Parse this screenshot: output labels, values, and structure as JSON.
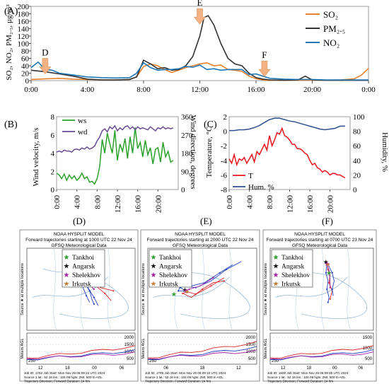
{
  "panels": {
    "A": {
      "tag": "(A)"
    },
    "B": {
      "tag": "(B)"
    },
    "C": {
      "tag": "(C)"
    },
    "D": {
      "tag": "(D)"
    },
    "E": {
      "tag": "(E)"
    },
    "F": {
      "tag": "(F)"
    }
  },
  "chart_data": [
    {
      "id": "A",
      "type": "line",
      "ylabel": "SO₂, NO₂, PM₂.₅, µg/m³",
      "ylim": [
        0,
        200
      ],
      "yticks": [
        0,
        20,
        40,
        60,
        80,
        100,
        120,
        140,
        160,
        180,
        200
      ],
      "xlim": [
        0,
        24
      ],
      "xticks": [
        "0:00",
        "4:00",
        "8:00",
        "12:00",
        "16:00",
        "20:00",
        "0:00"
      ],
      "legend_placement": "top-right",
      "colors": {
        "SO2": "#e8822c",
        "PM25": "#333333",
        "NO2": "#1f77b4",
        "arrow": "#f4b183"
      },
      "annotations": [
        {
          "label": "D",
          "x": 1.0,
          "y": 18
        },
        {
          "label": "E",
          "x": 12.0,
          "y": 152
        },
        {
          "label": "F",
          "x": 16.6,
          "y": 11
        }
      ],
      "series": [
        {
          "name": "SO₂",
          "key": "SO2",
          "x": [
            0,
            1,
            2,
            3,
            4,
            5,
            6,
            7,
            7.5,
            8,
            8.5,
            9,
            9.5,
            10,
            10.5,
            11,
            11.5,
            12,
            12.5,
            13,
            13.5,
            14,
            14.5,
            15,
            15.5,
            16,
            16.5,
            17,
            18,
            19,
            20,
            21,
            22,
            23,
            23.5,
            24
          ],
          "y": [
            3,
            5,
            6,
            4,
            3,
            2,
            2,
            3,
            10,
            38,
            45,
            40,
            30,
            22,
            28,
            35,
            40,
            45,
            48,
            40,
            42,
            30,
            28,
            25,
            12,
            5,
            2,
            1,
            1,
            1,
            1,
            1,
            2,
            5,
            15,
            33
          ]
        },
        {
          "name": "PM₂.₅",
          "key": "PM25",
          "x": [
            0,
            1,
            2,
            3,
            4,
            5,
            6,
            7,
            7.5,
            8,
            8.5,
            9,
            9.5,
            10,
            10.5,
            11,
            11.5,
            12,
            12.3,
            12.6,
            13,
            13.5,
            14,
            14.5,
            15,
            15.5,
            16,
            16.5,
            17,
            18,
            19,
            19.5,
            20,
            21,
            22,
            23,
            24
          ],
          "y": [
            28,
            24,
            18,
            12,
            4,
            2,
            2,
            3,
            10,
            55,
            45,
            32,
            35,
            28,
            30,
            40,
            65,
            120,
            170,
            175,
            150,
            100,
            60,
            45,
            40,
            20,
            8,
            4,
            2,
            1,
            2,
            12,
            2,
            1,
            1,
            1,
            1
          ]
        },
        {
          "name": "NO₂",
          "key": "NO2",
          "x": [
            0,
            0.5,
            1,
            1.5,
            2,
            3,
            4,
            5,
            6,
            7,
            7.5,
            8,
            8.5,
            9,
            9.5,
            10,
            10.5,
            11,
            11.5,
            12,
            12.5,
            13,
            13.5,
            14,
            14.5,
            15,
            15.5,
            16,
            16.5,
            17,
            18,
            19,
            20,
            21,
            22,
            23,
            24
          ],
          "y": [
            35,
            50,
            30,
            28,
            20,
            15,
            10,
            8,
            7,
            8,
            20,
            48,
            35,
            28,
            30,
            30,
            32,
            38,
            36,
            42,
            30,
            32,
            28,
            30,
            30,
            30,
            16,
            18,
            12,
            6,
            4,
            3,
            3,
            2,
            2,
            2,
            2
          ]
        }
      ]
    },
    {
      "id": "B",
      "type": "line",
      "ylabel": "Wind velocity, m/s",
      "y2label": "Wind direction, degrees",
      "ylim": [
        0,
        8
      ],
      "yticks": [
        0,
        2,
        4,
        6,
        8
      ],
      "y2lim": [
        0,
        360
      ],
      "y2ticks": [
        0,
        90,
        180,
        270,
        360
      ],
      "xticks": [
        "0:00",
        "4:00",
        "8:00",
        "12:00",
        "16:00",
        "20:00"
      ],
      "legend_placement": "top-left",
      "colors": {
        "ws": "#2ca02c",
        "wd": "#6a4c93"
      },
      "series": [
        {
          "name": "ws",
          "axis": "left",
          "x": [
            0,
            0.5,
            1,
            1.5,
            2,
            2.5,
            3,
            3.5,
            4,
            4.5,
            5,
            5.5,
            6,
            6.5,
            7,
            7.5,
            8,
            8.5,
            9,
            9.5,
            10,
            10.5,
            11,
            11.5,
            12,
            12.5,
            13,
            13.5,
            14,
            14.5,
            15,
            15.5,
            16,
            16.5,
            17,
            17.5,
            18,
            18.5,
            19,
            19.5,
            20,
            20.5,
            21,
            21.5,
            22,
            22.5,
            23
          ],
          "y": [
            1.8,
            1.6,
            1.2,
            1.7,
            1.0,
            1.6,
            1.2,
            1.5,
            1.0,
            1.3,
            1.8,
            1.2,
            1.4,
            0.8,
            0.9,
            0.6,
            1.2,
            2.5,
            5.5,
            4.0,
            6.2,
            5.0,
            4.0,
            6.5,
            3.2,
            5.0,
            4.2,
            5.6,
            3.4,
            5.8,
            4.0,
            6.8,
            4.5,
            5.2,
            3.6,
            5.4,
            3.8,
            4.6,
            2.8,
            4.4,
            4.6,
            3.0,
            5.2,
            3.6,
            4.2,
            3.0,
            3.2
          ]
        },
        {
          "name": "wd",
          "axis": "right",
          "x": [
            0,
            0.5,
            1,
            1.5,
            2,
            2.5,
            3,
            3.5,
            4,
            4.5,
            5,
            5.5,
            6,
            6.5,
            7,
            7.5,
            8,
            8.5,
            9,
            9.5,
            10,
            10.5,
            11,
            11.5,
            12,
            12.5,
            13,
            13.5,
            14,
            14.5,
            15,
            15.5,
            16,
            16.5,
            17,
            17.5,
            18,
            18.5,
            19,
            19.5,
            20,
            20.5,
            21,
            21.5,
            22,
            22.5,
            23
          ],
          "y": [
            185,
            190,
            185,
            195,
            190,
            190,
            185,
            198,
            200,
            195,
            205,
            200,
            210,
            200,
            205,
            215,
            240,
            260,
            290,
            300,
            285,
            310,
            300,
            315,
            290,
            305,
            295,
            310,
            315,
            300,
            310,
            295,
            310,
            300,
            305,
            300,
            295,
            310,
            300,
            290,
            305,
            300,
            310,
            300,
            305,
            300,
            305
          ]
        }
      ]
    },
    {
      "id": "C",
      "type": "line",
      "ylabel": "Temperature, °C",
      "y2label": "Humidity, %",
      "ylim": [
        -8,
        2
      ],
      "yticks": [
        -8,
        -6,
        -4,
        -2,
        0,
        2
      ],
      "y2lim": [
        0,
        100
      ],
      "y2ticks": [
        0,
        20,
        40,
        60,
        80,
        100
      ],
      "xticks": [
        "0:00",
        "4:00",
        "8:00",
        "12:00",
        "16:00",
        "20:00"
      ],
      "legend_placement": "bottom-left",
      "colors": {
        "T": "#e8141b",
        "Hum": "#2f4f8f"
      },
      "series": [
        {
          "name": "T",
          "axis": "left",
          "x": [
            0,
            0.5,
            1,
            1.5,
            2,
            2.5,
            3,
            3.5,
            4,
            4.5,
            5,
            5.5,
            6,
            6.5,
            7,
            7.5,
            8,
            8.5,
            9,
            9.5,
            10,
            10.5,
            11,
            11.5,
            12,
            12.5,
            13,
            13.5,
            14,
            14.5,
            15,
            15.5,
            16,
            16.5,
            17,
            17.5,
            18,
            18.5,
            19,
            19.5,
            20,
            20.5,
            21,
            21.5,
            22,
            22.5,
            23
          ],
          "y": [
            -3.8,
            -4.4,
            -3.2,
            -4.6,
            -3.8,
            -4.0,
            -3.6,
            -4.4,
            -3.8,
            -3.2,
            -4.2,
            -2.8,
            -3.2,
            -2.5,
            -1.8,
            -2.6,
            -0.6,
            -2.0,
            -1.2,
            -0.2,
            -0.4,
            0.4,
            -0.6,
            -0.8,
            -1.2,
            -1.8,
            -1.8,
            -2.4,
            -2.4,
            -2.6,
            -3.0,
            -3.2,
            -4.0,
            -4.6,
            -4.4,
            -5.0,
            -5.2,
            -5.6,
            -5.4,
            -5.6,
            -6.0,
            -5.8,
            -5.8,
            -6.0,
            -6.0,
            -6.2,
            -6.4
          ]
        },
        {
          "name": "Hum. %",
          "axis": "right",
          "x": [
            0,
            1,
            2,
            3,
            4,
            5,
            6,
            7,
            8,
            9,
            10,
            11,
            12,
            13,
            14,
            15,
            16,
            17,
            18,
            19,
            20,
            21,
            22,
            23
          ],
          "y": [
            81,
            81,
            82,
            82,
            83,
            85,
            88,
            92,
            96,
            98,
            98,
            96,
            94,
            93,
            91,
            89,
            87,
            85,
            83,
            82,
            83,
            84,
            87,
            87
          ]
        }
      ]
    }
  ],
  "hysplit": [
    {
      "id": "D",
      "header": [
        "NOAA HYSPLIT MODEL",
        "Forward trajectories starting at 1000 UTC 22 Nov 24",
        "GFSQ Meteorological Data"
      ],
      "side_label": "Source ★ at multiple locations",
      "agl_label": "Meters AGL",
      "agl_ticks": [
        "2000",
        "1500",
        "1000",
        "500"
      ],
      "bottom_250": "250",
      "time_ticks": [
        "12",
        "18",
        "00",
        "06"
      ],
      "footer": [
        "Job ID: 1782    Job Start: Mon Nov 25 06:09:24 UTC 2024",
        "Source 1 lat.: 52.16 lon.: 104.09 hgts: 250, 500 m AGL",
        "Trajectory Direction: Forward   Duration: 24 hrs",
        "Vertical Motion Calculation Method: Model Vertical Velocity",
        "Meteorology: 0000Z 22 Nov 2024 - GFSQ"
      ],
      "legend": [
        {
          "label": "Tankhoi",
          "color": "#2ca02c"
        },
        {
          "label": "Angarsk",
          "color": "#111111"
        },
        {
          "label": "Shelekhov",
          "color": "#a020a0"
        },
        {
          "label": "Irkutsk",
          "color": "#c87f3c"
        }
      ]
    },
    {
      "id": "E",
      "header": [
        "NOAA HYSPLIT MODEL",
        "Forward trajectories starting at 2000 UTC 22 Nov 24",
        "GFSQ Meteorological Data"
      ],
      "side_label": "Source ★ at multiple locations",
      "agl_label": "Meters AGL",
      "agl_ticks": [
        "2000",
        "1500",
        "1000",
        "500"
      ],
      "bottom_250": "250",
      "time_ticks": [
        "06",
        "18",
        "12"
      ],
      "footer": [
        "Job ID: 1799    Job Start: Mon Nov 25 06:09:10 UTC 2024",
        "Source 1 lat.: 52.16 lon.: 104.09 hgts: 250, 500 m AGL",
        "Trajectory Direction: Forward   Duration: 24 hrs",
        "Vertical Motion Calculation Method: Model Vertical Velocity",
        "Meteorology: 0000Z 22 Nov 2024 - GFSQ"
      ],
      "legend": [
        {
          "label": "Tankhoi",
          "color": "#2ca02c"
        },
        {
          "label": "Angarsk",
          "color": "#111111"
        },
        {
          "label": "Shelekhov",
          "color": "#a020a0"
        },
        {
          "label": "Irkutsk",
          "color": "#c87f3c"
        }
      ]
    },
    {
      "id": "F",
      "header": [
        "NOAA HYSPLIT MODEL",
        "Forward trajectories starting at 0700 UTC 23 Nov 24",
        "GFSQ Meteorological Data"
      ],
      "side_label": "Source ★ at multiple locations",
      "agl_label": "Meters AGL",
      "agl_ticks": [
        "1500",
        "1000",
        "500"
      ],
      "bottom_250": "250",
      "time_ticks": [
        "12",
        "18",
        "00",
        "06"
      ],
      "footer": [
        "Job ID: 1800    Job Start: Mon Nov 25 06:09:45 UTC 2024",
        "Source 1 lat.: 52.16 lon.: 104.09 hgts: 250, 500 m AGL",
        "Trajectory Direction: Forward   Duration: 24 hrs",
        "Vertical Motion Calculation Method: Model Vertical Velocity",
        "Meteorology: 0000Z 22 Nov 2024 - GFSQ"
      ],
      "legend": [
        {
          "label": "Tankhoi",
          "color": "#2ca02c"
        },
        {
          "label": "Angarsk",
          "color": "#111111"
        },
        {
          "label": "Shelekhov",
          "color": "#a020a0"
        },
        {
          "label": "Irkutsk",
          "color": "#c87f3c"
        }
      ]
    }
  ]
}
